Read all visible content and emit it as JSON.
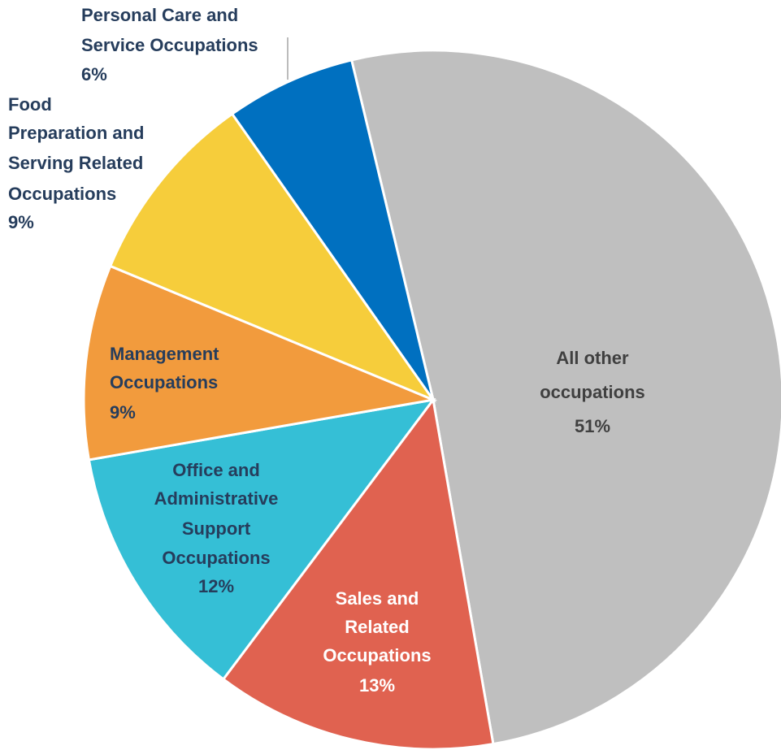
{
  "chart_data": {
    "type": "pie",
    "categories": [
      "All other occupations",
      "Sales and Related Occupations",
      "Office and Administrative Support Occupations",
      "Management Occupations",
      "Food Preparation and Serving Related Occupations",
      "Personal Care and Service Occupations"
    ],
    "values": [
      51,
      13,
      12,
      9,
      9,
      6
    ],
    "value_labels": [
      "51%",
      "13%",
      "12%",
      "9%",
      "9%",
      "6%"
    ],
    "colors": [
      "#bfbfbf",
      "#e06250",
      "#35bfd6",
      "#f29b3d",
      "#f6cd3b",
      "#0070c0"
    ]
  }
}
